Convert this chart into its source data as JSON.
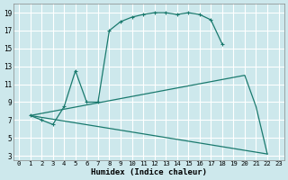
{
  "xlabel": "Humidex (Indice chaleur)",
  "bg_color": "#cde8ec",
  "grid_color": "#ffffff",
  "line_color": "#1a7a6e",
  "xlim": [
    -0.5,
    23.5
  ],
  "ylim": [
    2.5,
    20.0
  ],
  "xticks": [
    0,
    1,
    2,
    3,
    4,
    5,
    6,
    7,
    8,
    9,
    10,
    11,
    12,
    13,
    14,
    15,
    16,
    17,
    18,
    19,
    20,
    21,
    22,
    23
  ],
  "yticks": [
    3,
    5,
    7,
    9,
    11,
    13,
    15,
    17,
    19
  ],
  "line1_x": [
    1,
    2,
    3,
    4,
    5,
    6,
    7,
    8,
    9,
    10,
    11,
    12,
    13,
    14,
    15,
    16,
    17,
    18
  ],
  "line1_y": [
    7.5,
    7.0,
    6.5,
    8.5,
    12.5,
    9.0,
    9.0,
    17.0,
    18.0,
    18.5,
    18.8,
    19.0,
    19.0,
    18.8,
    19.0,
    18.8,
    18.2,
    15.5
  ],
  "line2_x": [
    1,
    20,
    21,
    22
  ],
  "line2_y": [
    7.5,
    12.0,
    8.5,
    3.2
  ],
  "line3_x": [
    1,
    22
  ],
  "line3_y": [
    7.5,
    3.2
  ]
}
